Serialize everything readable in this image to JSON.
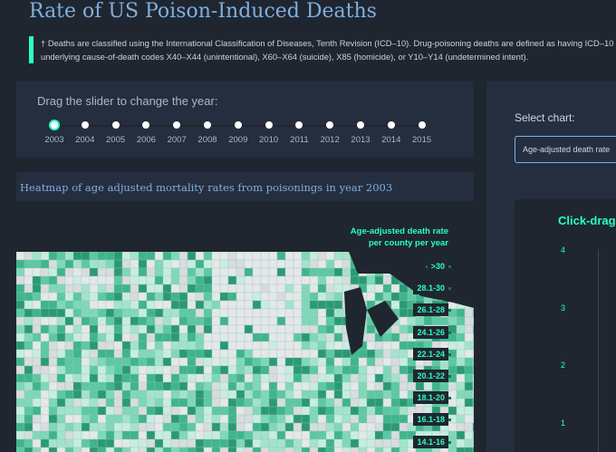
{
  "header": {
    "title": "Rate of US Poison-Induced Deaths",
    "note": "† Deaths are classified using the International Classification of Diseases, Tenth Revision (ICD–10). Drug-poisoning deaths are defined as having ICD–10 underlying cause-of-death codes X40–X44 (unintentional), X60–X64 (suicide), X85 (homicide), or Y10–Y14 (undetermined intent)."
  },
  "slider": {
    "label": "Drag the slider to change the year:",
    "years": [
      "2003",
      "2004",
      "2005",
      "2006",
      "2007",
      "2008",
      "2009",
      "2010",
      "2011",
      "2012",
      "2013",
      "2014",
      "2015"
    ]
  },
  "heatmap": {
    "title": "Heatmap of age adjusted mortality rates from poisonings in year 2003",
    "legend_title": [
      "Age-adjusted death rate",
      "per county per year"
    ],
    "legend": [
      ">30",
      "28.1-30",
      "26.1-28",
      "24.1-26",
      "22.1-24",
      "20.1-22",
      "18.1-20",
      "16.1-18",
      "14.1-16"
    ]
  },
  "side": {
    "select_label": "Select chart:",
    "dropdown": "Age-adjusted death rate",
    "chart_title": "Click-drag o",
    "yticks": [
      "4",
      "3",
      "2",
      "1"
    ]
  }
}
